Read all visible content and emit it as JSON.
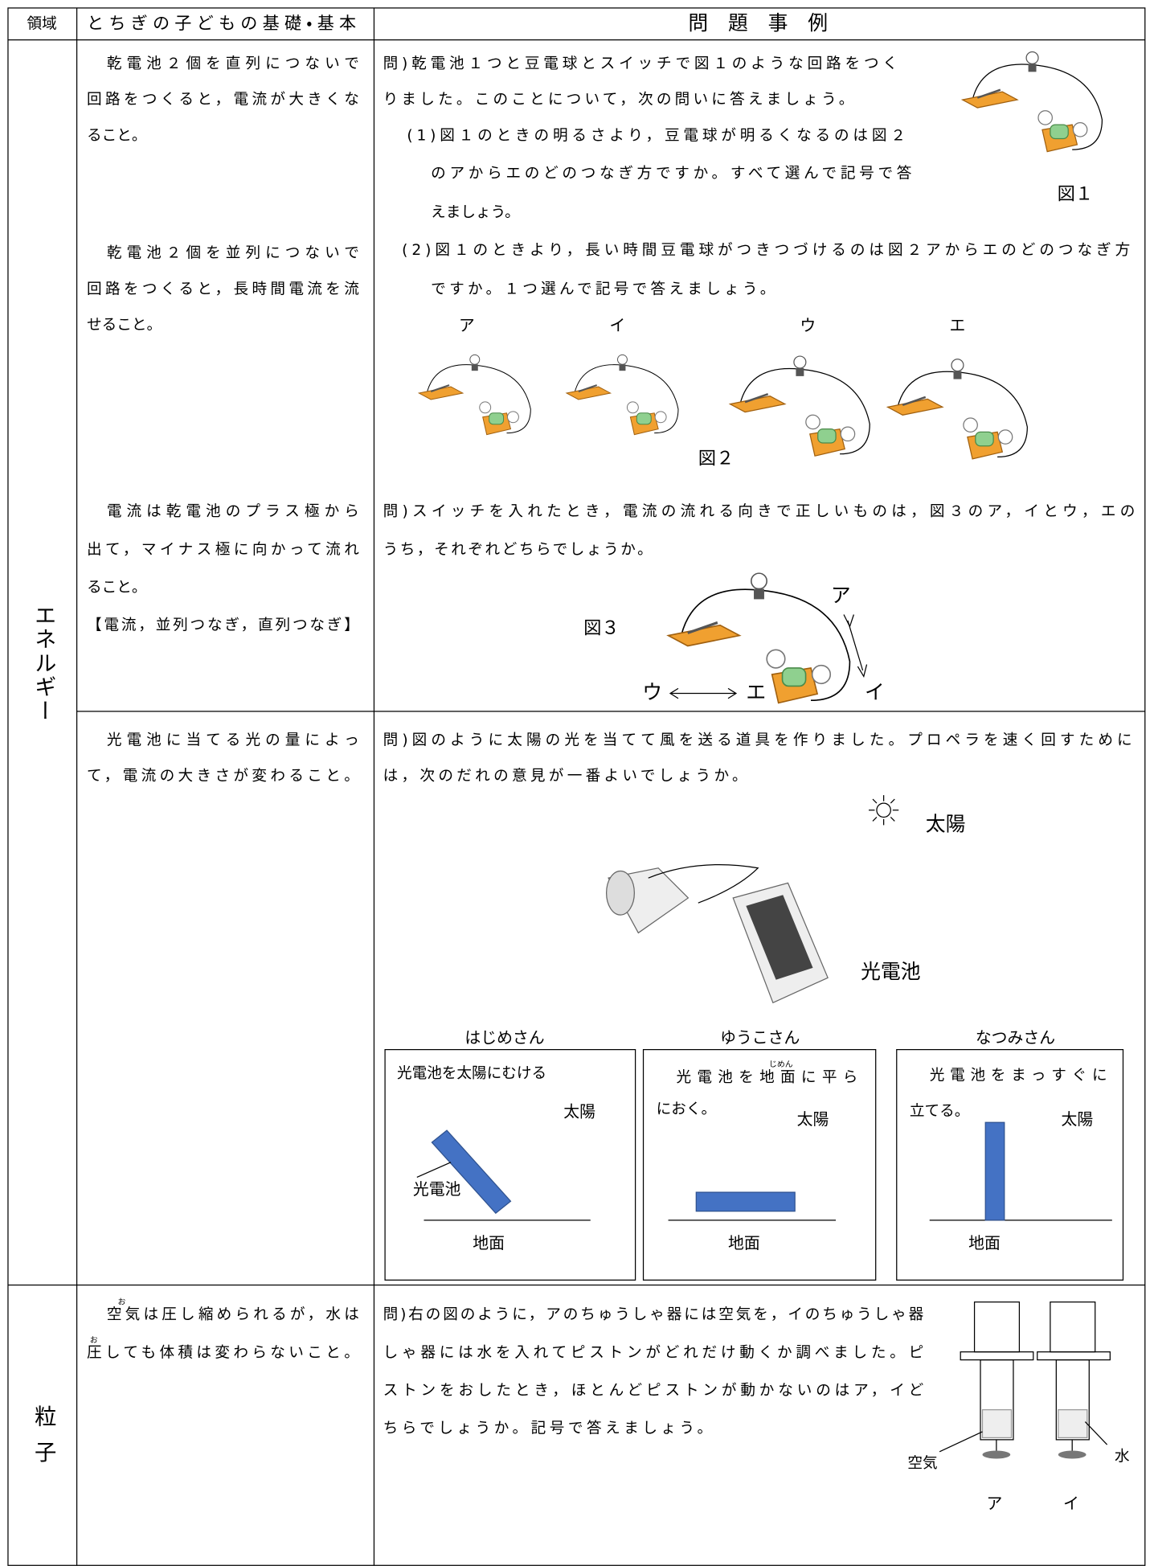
{
  "header": {
    "domain": "領域",
    "basics": "とちぎの子どもの基礎・基本",
    "examples": "問　題　事　例"
  },
  "rows": [
    {
      "domain": "エネルギー",
      "basics": [
        {
          "lines": [
            "乾電池２個を直列につないで",
            "回路をつくると，電流が大きくな",
            "ること。"
          ]
        },
        {
          "lines": [
            "乾電池２個を並列につないで",
            "回路をつくると，長時間電流を流",
            "せること。"
          ]
        },
        {
          "lines": [
            "電流は乾電池のプラス極から",
            "出て，マイナス極に向かって流れ",
            "ること。",
            "【電流，並列つなぎ，直列つなぎ】"
          ]
        },
        {
          "lines": [
            "光電池に当てる光の量によっ",
            "て，電流の大きさが変わること。"
          ]
        }
      ],
      "questions": [
        {
          "lines": [
            "問)乾電池１つと豆電球とスイッチで図１のような回路をつく",
            "りました。このことについて，次の問いに答えましょう。",
            "(1)図１のときの明るさより，豆電球が明るくなるのは図２",
            "のアからエのどのつなぎ方ですか。すべて選んで記号で答",
            "えましょう。",
            "(2)図１のときより，長い時間豆電球がつきつづけるのは図２アからエのどのつなぎ方",
            "ですか。１つ選んで記号で答えましょう。"
          ],
          "figure1_label": "図１",
          "figure2_options": [
            "ア",
            "イ",
            "ウ",
            "エ"
          ],
          "figure2_label": "図２"
        },
        {
          "lines": [
            "問)スイッチを入れたとき，電流の流れる向きで正しいものは，図３のア，イとウ，エの",
            "うち，それぞれどちらでしょうか。"
          ],
          "figure3_label": "図３",
          "directions": [
            "ア",
            "イ",
            "ウ",
            "エ"
          ]
        },
        {
          "lines": [
            "問)図のように太陽の光を当てて風を送る道具を作りました。プロペラを速く回すために",
            "は，次のだれの意見が一番よいでしょうか。"
          ],
          "sun": "太陽",
          "solar_cell": "光電池",
          "opinions": [
            {
              "name": "はじめさん",
              "lines": [
                "光電池を太陽にむける"
              ],
              "sun": "太陽",
              "panel": "光電池",
              "ground": "地面"
            },
            {
              "name": "ゆうこさん",
              "lines": [
                "光電池を地面に平ら",
                "におく。"
              ],
              "furigana": "じめん",
              "sun": "太陽",
              "ground": "地面"
            },
            {
              "name": "なつみさん",
              "lines": [
                "光電池をまっすぐに",
                "立てる。"
              ],
              "sun": "太陽",
              "ground": "地面"
            }
          ]
        }
      ]
    },
    {
      "domain": "粒子",
      "basics": [
        {
          "lines": [
            "空気は圧し縮められるが，水は",
            "圧しても体積は変わらないこと。"
          ],
          "furigana": [
            "お",
            "お"
          ]
        }
      ],
      "questions": [
        {
          "lines": [
            "問)右の図のように，アのちゅうしゃ器には空気を，イのちゅうしゃ器",
            "しゃ器には水を入れてピストンがどれだけ動くか調べました。ピ",
            "ストンをおしたとき，ほとんどピストンが動かないのはア，イど",
            "ちらでしょうか。記号で答えましょう。"
          ],
          "air": "空気",
          "water": "水",
          "options": [
            "ア",
            "イ"
          ]
        }
      ]
    }
  ]
}
